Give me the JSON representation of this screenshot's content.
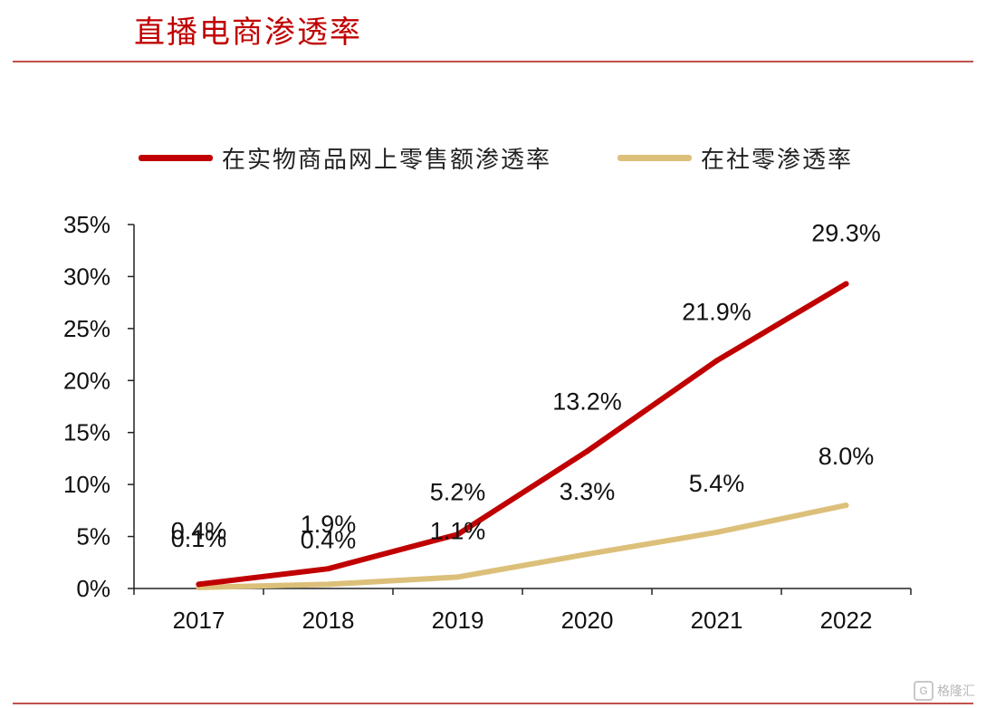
{
  "title": "直播电商渗透率",
  "watermark": {
    "text": "格隆汇",
    "icon": "G"
  },
  "chart_data": {
    "type": "line",
    "categories": [
      "2017",
      "2018",
      "2019",
      "2020",
      "2021",
      "2022"
    ],
    "ylim": [
      0,
      35
    ],
    "yticks": [
      0,
      5,
      10,
      15,
      20,
      25,
      30,
      35
    ],
    "ytick_labels": [
      "0%",
      "5%",
      "10%",
      "15%",
      "20%",
      "25%",
      "30%",
      "35%"
    ],
    "grid": false,
    "legend_position": "top",
    "series": [
      {
        "name": "在实物商品网上零售额渗透率",
        "color": "#c00000",
        "values": [
          0.4,
          1.9,
          5.2,
          13.2,
          21.9,
          29.3
        ],
        "labels": [
          "0.4%",
          "1.9%",
          "5.2%",
          "13.2%",
          "21.9%",
          "29.3%"
        ]
      },
      {
        "name": "在社零渗透率",
        "color": "#dcc07a",
        "values": [
          0.1,
          0.4,
          1.1,
          3.3,
          5.4,
          8.0
        ],
        "labels": [
          "0.1%",
          "0.4%",
          "1.1%",
          "3.3%",
          "5.4%",
          "8.0%"
        ]
      }
    ]
  }
}
